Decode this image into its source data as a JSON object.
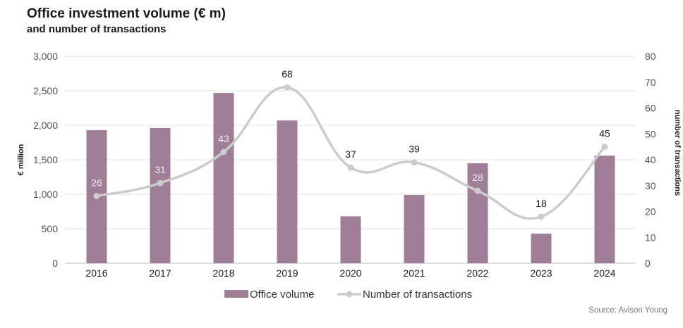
{
  "title": "Office investment volume (€ m)",
  "subtitle": "and number of transactions",
  "source": "Source: Avison Young",
  "chart_data": {
    "type": "bar",
    "categories": [
      "2016",
      "2017",
      "2018",
      "2019",
      "2020",
      "2021",
      "2022",
      "2023",
      "2024"
    ],
    "series": [
      {
        "name": "Office volume",
        "type": "bar",
        "axis": "left",
        "color": "#9e7f95",
        "values": [
          1930,
          1960,
          2470,
          2070,
          680,
          990,
          1450,
          430,
          1560
        ]
      },
      {
        "name": "Number of transactions",
        "type": "line",
        "axis": "right",
        "color": "#cccccc",
        "values": [
          26,
          31,
          43,
          68,
          37,
          39,
          28,
          18,
          45
        ]
      }
    ],
    "ylabel": "€ million",
    "y2label": "number of transactions",
    "ylim": [
      0,
      3000
    ],
    "yticks": [
      "0",
      "500",
      "1,000",
      "1,500",
      "2,000",
      "2,500",
      "3,000"
    ],
    "y2lim": [
      0,
      80
    ],
    "y2ticks": [
      "0",
      "10",
      "20",
      "30",
      "40",
      "50",
      "60",
      "70",
      "80"
    ],
    "grid": true,
    "legend_position": "bottom"
  }
}
